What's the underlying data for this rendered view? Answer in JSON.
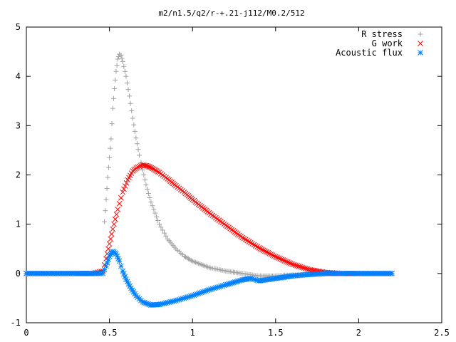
{
  "chart_data": {
    "type": "scatter",
    "title": "m2/n1.5/q2/r-+.21-j112/M0.2/512",
    "xlabel": "",
    "ylabel": "",
    "xlim": [
      0,
      2.5
    ],
    "ylim": [
      -1,
      5
    ],
    "x_ticks": [
      "0",
      "0.5",
      "1",
      "1.5",
      "2",
      "2.5"
    ],
    "y_ticks": [
      "-1",
      "0",
      "1",
      "2",
      "3",
      "4",
      "5"
    ],
    "grid": false,
    "legend_position": "top-right",
    "series": [
      {
        "name": "R stress",
        "marker": "plus",
        "color": "#a0a0a0",
        "points": [
          [
            0.0,
            0.0
          ],
          [
            0.2,
            0.0
          ],
          [
            0.4,
            0.0
          ],
          [
            0.46,
            0.02
          ],
          [
            0.47,
            1.05
          ],
          [
            0.48,
            1.5
          ],
          [
            0.49,
            1.95
          ],
          [
            0.5,
            2.35
          ],
          [
            0.51,
            2.73
          ],
          [
            0.52,
            3.35
          ],
          [
            0.53,
            3.75
          ],
          [
            0.54,
            4.1
          ],
          [
            0.55,
            4.35
          ],
          [
            0.56,
            4.45
          ],
          [
            0.57,
            4.43
          ],
          [
            0.58,
            4.3
          ],
          [
            0.6,
            4.0
          ],
          [
            0.62,
            3.6
          ],
          [
            0.64,
            3.15
          ],
          [
            0.66,
            2.75
          ],
          [
            0.68,
            2.4
          ],
          [
            0.7,
            2.1
          ],
          [
            0.72,
            1.8
          ],
          [
            0.75,
            1.45
          ],
          [
            0.8,
            1.0
          ],
          [
            0.85,
            0.7
          ],
          [
            0.9,
            0.5
          ],
          [
            0.95,
            0.35
          ],
          [
            1.0,
            0.25
          ],
          [
            1.1,
            0.12
          ],
          [
            1.2,
            0.05
          ],
          [
            1.3,
            0.0
          ],
          [
            1.4,
            -0.05
          ],
          [
            1.5,
            -0.05
          ],
          [
            1.6,
            -0.03
          ],
          [
            1.7,
            -0.02
          ],
          [
            1.8,
            0.0
          ],
          [
            2.0,
            0.0
          ],
          [
            2.2,
            0.0
          ]
        ]
      },
      {
        "name": "G work",
        "marker": "cross",
        "color": "#ff0000",
        "points": [
          [
            0.0,
            0.0
          ],
          [
            0.2,
            0.0
          ],
          [
            0.4,
            0.0
          ],
          [
            0.46,
            0.05
          ],
          [
            0.48,
            0.3
          ],
          [
            0.5,
            0.6
          ],
          [
            0.52,
            0.9
          ],
          [
            0.55,
            1.3
          ],
          [
            0.58,
            1.65
          ],
          [
            0.61,
            1.9
          ],
          [
            0.64,
            2.08
          ],
          [
            0.67,
            2.16
          ],
          [
            0.7,
            2.2
          ],
          [
            0.73,
            2.18
          ],
          [
            0.76,
            2.13
          ],
          [
            0.8,
            2.05
          ],
          [
            0.85,
            1.92
          ],
          [
            0.9,
            1.78
          ],
          [
            0.95,
            1.65
          ],
          [
            1.0,
            1.5
          ],
          [
            1.1,
            1.23
          ],
          [
            1.2,
            0.98
          ],
          [
            1.3,
            0.73
          ],
          [
            1.4,
            0.52
          ],
          [
            1.5,
            0.34
          ],
          [
            1.6,
            0.19
          ],
          [
            1.7,
            0.08
          ],
          [
            1.8,
            0.02
          ],
          [
            1.9,
            0.0
          ],
          [
            2.0,
            0.0
          ],
          [
            2.2,
            0.0
          ]
        ]
      },
      {
        "name": "Acoustic flux",
        "marker": "star",
        "color": "#0080ff",
        "points": [
          [
            0.0,
            0.0
          ],
          [
            0.1,
            0.0
          ],
          [
            0.2,
            0.0
          ],
          [
            0.3,
            0.0
          ],
          [
            0.4,
            0.0
          ],
          [
            0.46,
            0.0
          ],
          [
            0.48,
            0.15
          ],
          [
            0.5,
            0.35
          ],
          [
            0.52,
            0.45
          ],
          [
            0.54,
            0.4
          ],
          [
            0.56,
            0.25
          ],
          [
            0.58,
            0.05
          ],
          [
            0.6,
            -0.12
          ],
          [
            0.63,
            -0.3
          ],
          [
            0.66,
            -0.45
          ],
          [
            0.7,
            -0.58
          ],
          [
            0.75,
            -0.64
          ],
          [
            0.8,
            -0.63
          ],
          [
            0.9,
            -0.55
          ],
          [
            1.0,
            -0.45
          ],
          [
            1.1,
            -0.33
          ],
          [
            1.2,
            -0.23
          ],
          [
            1.3,
            -0.13
          ],
          [
            1.35,
            -0.1
          ],
          [
            1.4,
            -0.15
          ],
          [
            1.5,
            -0.1
          ],
          [
            1.6,
            -0.05
          ],
          [
            1.7,
            -0.02
          ],
          [
            1.8,
            0.0
          ],
          [
            2.0,
            0.0
          ],
          [
            2.2,
            0.0
          ]
        ]
      }
    ]
  }
}
